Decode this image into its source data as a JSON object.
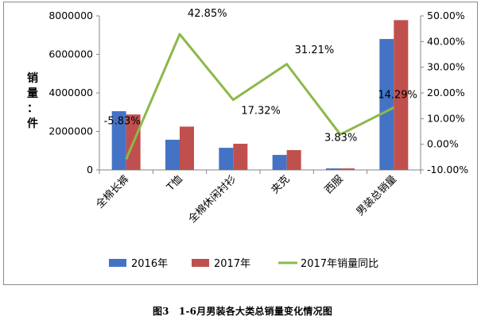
{
  "chart_data": {
    "type": "bar",
    "categories": [
      "全棉长裤",
      "T恤",
      "全棉休闲衬衫",
      "夹克",
      "西服",
      "男装总销量"
    ],
    "series": [
      {
        "name": "2016年",
        "kind": "bar",
        "axis": "left",
        "color": "#4473C5",
        "values": [
          3050000,
          1570000,
          1150000,
          780000,
          80000,
          6800000
        ]
      },
      {
        "name": "2017年",
        "kind": "bar",
        "axis": "left",
        "color": "#C0504D",
        "values": [
          2880000,
          2250000,
          1360000,
          1030000,
          80000,
          7780000
        ]
      },
      {
        "name": "2017年销量同比",
        "kind": "line",
        "axis": "right",
        "color": "#8DB84A",
        "values": [
          -5.83,
          42.85,
          17.32,
          31.21,
          3.83,
          14.29
        ],
        "labels": [
          "-5.83%",
          "42.85%",
          "17.32%",
          "31.21%",
          "3.83%",
          "14.29%"
        ]
      }
    ],
    "ylabel": "销量：件",
    "ylim": [
      0,
      8000000
    ],
    "y_ticks": [
      "0",
      "2000000",
      "4000000",
      "6000000",
      "8000000"
    ],
    "y2lim": [
      -10,
      50
    ],
    "y2_ticks": [
      "-10.00%",
      "0.00%",
      "10.00%",
      "20.00%",
      "30.00%",
      "40.00%",
      "50.00%"
    ],
    "grid": false,
    "legend_position": "bottom",
    "caption": "图3　1-6月男装各大类总销量变化情况图"
  }
}
